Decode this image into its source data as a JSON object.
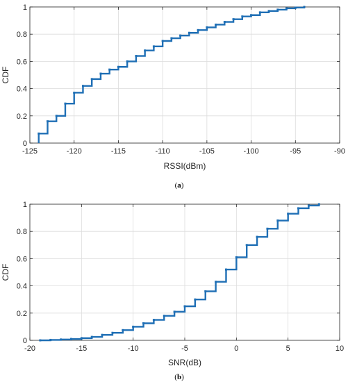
{
  "chart_data": [
    {
      "type": "line",
      "step": true,
      "caption_open": "(",
      "caption_letter": "a",
      "caption_close": ")",
      "xlabel": "RSSI(dBm)",
      "ylabel": "CDF",
      "xlim": [
        -125,
        -90
      ],
      "ylim": [
        0,
        1
      ],
      "xticks": [
        -125,
        -120,
        -115,
        -110,
        -105,
        -100,
        -95,
        -90
      ],
      "yticks": [
        0,
        0.2,
        0.4,
        0.6,
        0.8,
        1
      ],
      "grid": true,
      "line_color": "#1f6fb5",
      "x": [
        -124,
        -123,
        -122,
        -121,
        -120,
        -119,
        -118,
        -117,
        -116,
        -115,
        -114,
        -113,
        -112,
        -111,
        -110,
        -109,
        -108,
        -107,
        -106,
        -105,
        -104,
        -103,
        -102,
        -101,
        -100,
        -99,
        -98,
        -97,
        -96,
        -95,
        -94
      ],
      "y": [
        0.07,
        0.16,
        0.2,
        0.29,
        0.37,
        0.42,
        0.47,
        0.51,
        0.54,
        0.56,
        0.6,
        0.64,
        0.68,
        0.71,
        0.75,
        0.77,
        0.79,
        0.81,
        0.83,
        0.85,
        0.87,
        0.89,
        0.91,
        0.93,
        0.94,
        0.96,
        0.97,
        0.98,
        0.99,
        0.995,
        1.0
      ]
    },
    {
      "type": "line",
      "step": true,
      "caption_open": "(",
      "caption_letter": "b",
      "caption_close": ")",
      "xlabel": "SNR(dB)",
      "ylabel": "CDF",
      "xlim": [
        -20,
        10
      ],
      "ylim": [
        0,
        1
      ],
      "xticks": [
        -20,
        -15,
        -10,
        -5,
        0,
        5,
        10
      ],
      "yticks": [
        0,
        0.2,
        0.4,
        0.6,
        0.8,
        1
      ],
      "grid": true,
      "line_color": "#1f6fb5",
      "x": [
        -19,
        -18,
        -17,
        -16,
        -15,
        -14,
        -13,
        -12,
        -11,
        -10,
        -9,
        -8,
        -7,
        -6,
        -5,
        -4,
        -3,
        -2,
        -1,
        0,
        1,
        2,
        3,
        4,
        5,
        6,
        7,
        8
      ],
      "y": [
        0.0,
        0.003,
        0.006,
        0.01,
        0.016,
        0.025,
        0.04,
        0.055,
        0.075,
        0.1,
        0.125,
        0.15,
        0.18,
        0.21,
        0.25,
        0.3,
        0.36,
        0.43,
        0.52,
        0.61,
        0.7,
        0.76,
        0.82,
        0.88,
        0.93,
        0.97,
        0.99,
        1.0
      ]
    }
  ]
}
